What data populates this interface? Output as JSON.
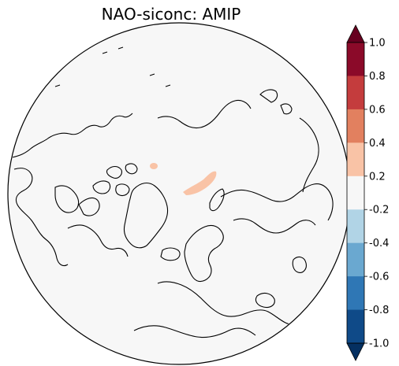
{
  "title": "NAO-siconc: AMIP",
  "colorbar": {
    "ticks": [
      "1.0",
      "0.8",
      "0.6",
      "0.4",
      "0.2",
      "-0.2",
      "-0.4",
      "-0.6",
      "-0.8",
      "-1.0"
    ],
    "colors": [
      "#67001f",
      "#8b0a29",
      "#c43c3d",
      "#e2805f",
      "#f9c3a6",
      "#f7f7f7",
      "#b1d4e6",
      "#6aa8d0",
      "#2f77b5",
      "#0f4a88",
      "#053061"
    ],
    "extend": "both"
  },
  "map": {
    "projection": "north-polar-orthographic",
    "background_color": "#f7f7f7",
    "coastline_color": "#000000",
    "anomaly_color": "#f9c3a6"
  }
}
